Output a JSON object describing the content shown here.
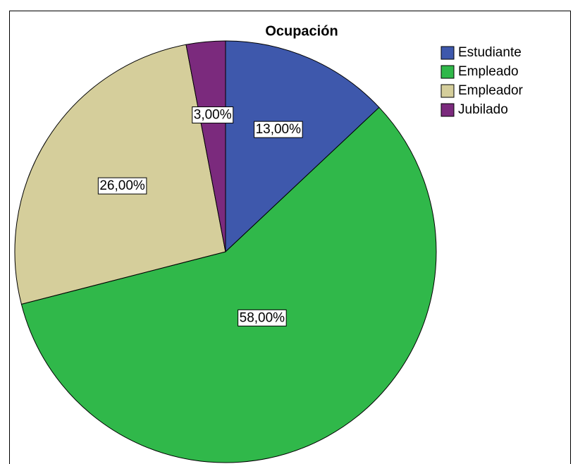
{
  "chart_data": {
    "type": "pie",
    "title": "Ocupación",
    "categories": [
      "Estudiante",
      "Empleado",
      "Empleador",
      "Jubilado"
    ],
    "values": [
      13,
      58,
      26,
      3
    ],
    "value_labels": [
      "13,00%",
      "58,00%",
      "26,00%",
      "3,00%"
    ],
    "colors": [
      "#3e58ac",
      "#30b84a",
      "#d5ce9b",
      "#7b2a7d"
    ],
    "legend": "top-right"
  }
}
